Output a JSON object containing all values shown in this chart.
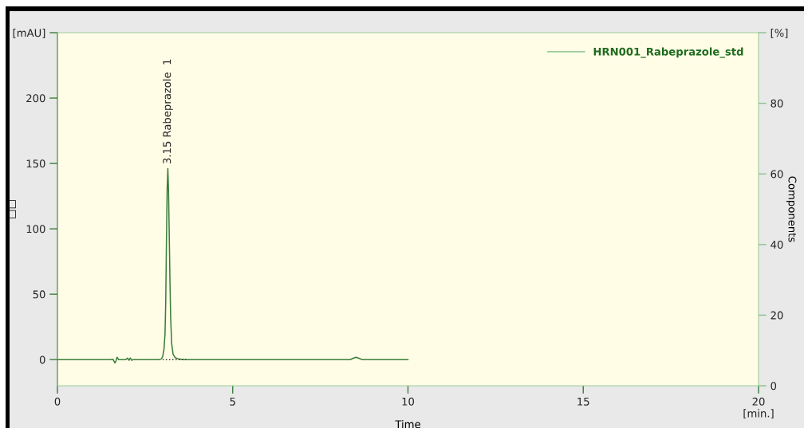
{
  "chart_data": {
    "type": "line",
    "xlabel": "Time",
    "ylabel": "□□",
    "y2label": "Components",
    "xlim": [
      0,
      20
    ],
    "xticks": [
      0,
      5,
      10,
      15,
      {
        "value": 20,
        "label": "20\n[min.]"
      }
    ],
    "ylim": [
      -20,
      250
    ],
    "yticks": [
      0,
      50,
      100,
      150,
      200,
      {
        "value": 250,
        "label": "[mAU]"
      }
    ],
    "y2lim": [
      0,
      100
    ],
    "y2ticks": [
      0,
      20,
      40,
      60,
      80,
      {
        "value": 100,
        "label": "[%]"
      }
    ],
    "legend": "top right",
    "series": [
      {
        "name": "HRN001_Rabeprazole_std",
        "color": "#3a7d3a",
        "x": [
          0,
          1.5,
          1.58,
          1.62,
          1.64,
          1.67,
          1.7,
          1.75,
          1.95,
          2.0,
          2.04,
          2.08,
          2.12,
          2.16,
          2.5,
          2.9,
          2.96,
          3.0,
          3.04,
          3.07,
          3.09,
          3.11,
          3.13,
          3.15,
          3.17,
          3.19,
          3.21,
          3.23,
          3.26,
          3.3,
          3.36,
          3.45,
          3.6,
          4.5,
          8.35,
          8.45,
          8.52,
          8.6,
          8.7,
          10
        ],
        "values": [
          0,
          0,
          0.3,
          -1.5,
          -2.6,
          -1,
          1.8,
          0,
          0,
          1.2,
          -0.5,
          1.2,
          -0.6,
          0,
          0,
          0,
          0.5,
          2,
          8,
          20,
          45,
          90,
          130,
          146,
          128,
          95,
          60,
          32,
          12,
          4,
          1.5,
          0.5,
          0,
          0,
          0,
          1.2,
          1.8,
          1,
          0,
          0
        ]
      },
      {
        "type": "line",
        "line_style": "dotted",
        "color": "#333333",
        "x": [
          3.0,
          3.67
        ],
        "values": [
          0,
          0
        ]
      }
    ],
    "annotations": [
      {
        "text": "3.15 Rabeprazole  1",
        "x": 3.15,
        "y": 146
      }
    ]
  }
}
